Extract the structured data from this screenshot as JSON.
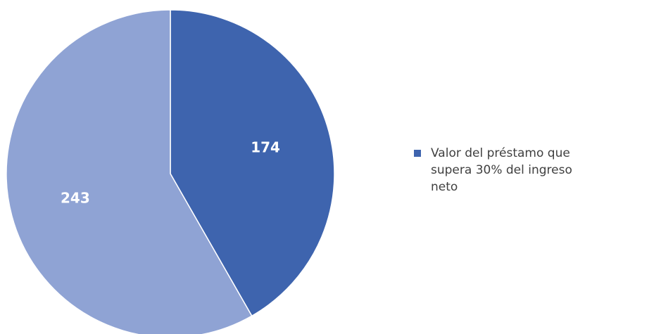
{
  "chart_data": {
    "type": "pie",
    "categories": [
      "Valor del préstamo que supera 30% del ingreso neto",
      null
    ],
    "values": [
      174,
      243
    ],
    "colors": [
      "#3e64ae",
      "#8fa3d4"
    ],
    "legend": "right"
  }
}
